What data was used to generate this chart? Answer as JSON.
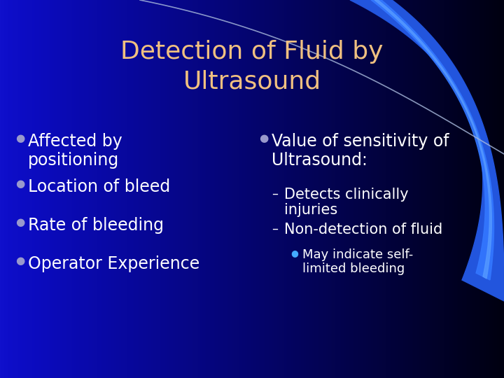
{
  "title_line1": "Detection of Fluid by",
  "title_line2": "Ultrasound",
  "title_color": "#F0C080",
  "bg_color": "#000010",
  "left_bullets": [
    "Affected by\npositioning",
    "Location of bleed",
    "Rate of bleeding",
    "Operator Experience"
  ],
  "right_bullet_main": "Value of sensitivity of\nUltrasound:",
  "right_sub1": "Detects clinically\ninjuries",
  "right_sub2": "Non-detection of fluid",
  "right_sub3": "May indicate self-\nlimited bleeding",
  "bullet_color": "#FFFFFF",
  "bullet_dot_color": "#9999CC",
  "sub_sub_dot_color": "#44AAFF",
  "title_fontsize": 26,
  "bullet_fontsize": 17,
  "sub_fontsize": 15,
  "subsub_fontsize": 13
}
